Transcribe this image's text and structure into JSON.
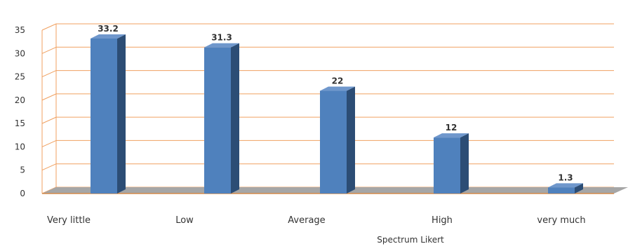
{
  "chart_data": {
    "type": "bar",
    "categories": [
      "Very little",
      "Low",
      "Average",
      "High",
      "very much"
    ],
    "values": [
      33.2,
      31.3,
      22,
      12,
      1.3
    ],
    "data_labels": [
      "33.2",
      "31.3",
      "22",
      "12",
      "1.3"
    ],
    "title": "",
    "xlabel": "Spectrum Likert",
    "ylabel": "",
    "ylim": [
      0,
      35
    ],
    "yticks": [
      0,
      5,
      10,
      15,
      20,
      25,
      30,
      35
    ],
    "grid": true,
    "legend": "none",
    "colors": {
      "bar_front": "#4f81bd",
      "bar_side": "#2c4d75",
      "bar_top": "#6f97cc",
      "gridline": "#f0a060",
      "floor": "#a6a6a6",
      "floor_edge": "#d48a4a",
      "axis_text": "#333333"
    }
  }
}
